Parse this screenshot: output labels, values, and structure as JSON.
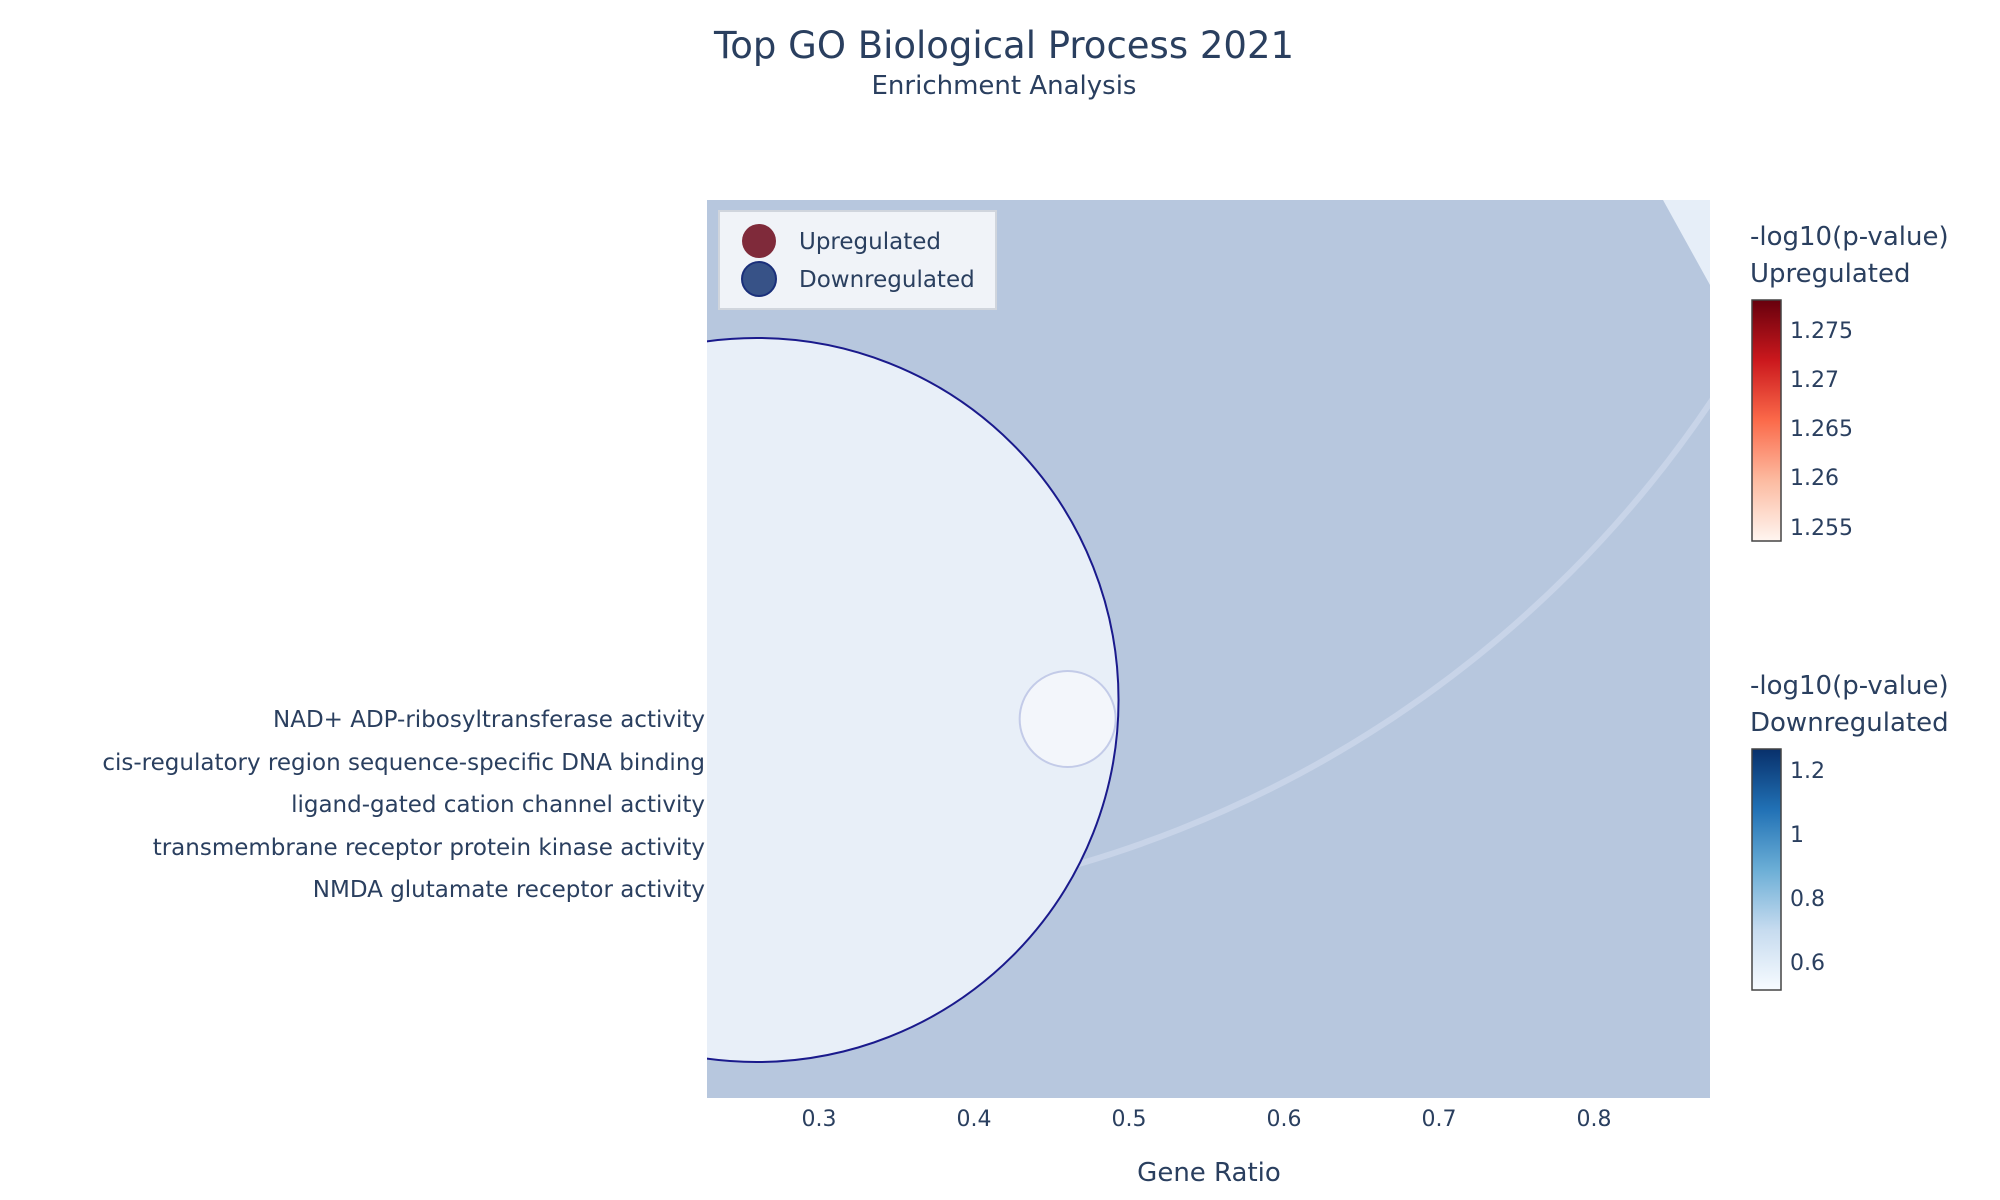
{
  "chart_data": {
    "type": "scatter",
    "title": "Top GO Biological Process 2021",
    "subtitle": "Enrichment Analysis",
    "xlabel": "Gene Ratio",
    "xlim": [
      0.228,
      0.876
    ],
    "x_ticks": [
      "0.3",
      "0.4",
      "0.5",
      "0.6",
      "0.7",
      "0.8"
    ],
    "categories": [
      "NAD+ ADP-ribosyltransferase activity",
      "cis-regulatory region sequence-specific DNA binding",
      "ligand-gated cation channel activity",
      "transmembrane receptor protein kinase activity",
      "NMDA glutamate receptor activity"
    ],
    "series": [
      {
        "name": "Upregulated",
        "color": "#7f2a3a",
        "points": [
          {
            "x": 0.26,
            "category": "transmembrane receptor protein kinase activity",
            "neg_log10_p": 1.255,
            "size_class": "very-large"
          }
        ]
      },
      {
        "name": "Downregulated",
        "color": "#375287",
        "points": [
          {
            "x": 0.26,
            "category": "cis-regulatory region sequence-specific DNA binding",
            "neg_log10_p": 0.55,
            "size_class": "large"
          },
          {
            "x": 0.461,
            "category": "NAD+ ADP-ribosyltransferase activity",
            "neg_log10_p": 0.52,
            "size_class": "small"
          }
        ]
      }
    ],
    "legend": {
      "position": "top-left",
      "items": [
        "Upregulated",
        "Downregulated"
      ]
    },
    "colorbars": [
      {
        "title_line1": "-log10(p-value)",
        "title_line2": "Upregulated",
        "colors": [
          "#fff5f0",
          "#fcbba1",
          "#fb6a4a",
          "#cb181d",
          "#67000d"
        ],
        "range": [
          1.2535,
          1.2795
        ],
        "ticks": [
          "1.255",
          "1.26",
          "1.265",
          "1.27",
          "1.275"
        ]
      },
      {
        "title_line1": "-log10(p-value)",
        "title_line2": "Downregulated",
        "colors": [
          "#f7fbff",
          "#c6dbef",
          "#6baed6",
          "#2171b5",
          "#08306b"
        ],
        "range": [
          0.5,
          1.29
        ],
        "ticks": [
          "0.6",
          "0.8",
          "1",
          "1.2"
        ]
      }
    ],
    "colors": {
      "plot_bg": "#b7c7de",
      "text": "#2a3f5f"
    }
  }
}
